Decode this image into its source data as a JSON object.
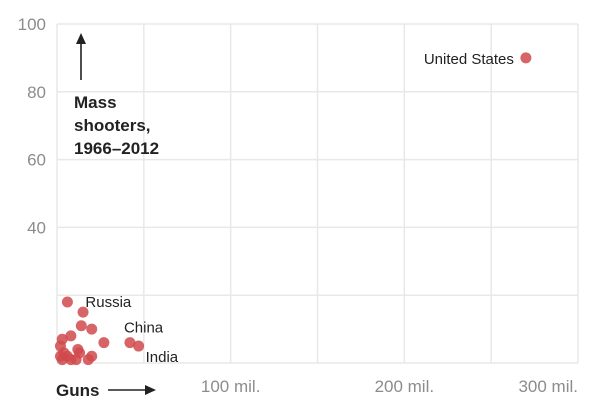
{
  "chart_data": {
    "type": "scatter",
    "xlabel": "Guns",
    "ylabel_lines": [
      "Mass",
      "shooters,",
      "1966–2012"
    ],
    "xlim": [
      0,
      300
    ],
    "ylim": [
      0,
      100
    ],
    "x_ticks": [
      {
        "value": 100,
        "label": "100 mil."
      },
      {
        "value": 200,
        "label": "200 mil."
      },
      {
        "value": 300,
        "label": "300 mil."
      }
    ],
    "y_ticks": [
      {
        "value": 100,
        "label": "100"
      },
      {
        "value": 80,
        "label": "80"
      },
      {
        "value": 60,
        "label": "60"
      },
      {
        "value": 40,
        "label": "40"
      }
    ],
    "x_gridlines": [
      50,
      100,
      150,
      200,
      250,
      300
    ],
    "y_gridlines": [
      20,
      40,
      60,
      80,
      100
    ],
    "grid": true,
    "point_color": "#d0494b",
    "points": [
      {
        "x": 270,
        "y": 90,
        "label": "United States"
      },
      {
        "x": 6,
        "y": 18,
        "label": "Russia"
      },
      {
        "x": 42,
        "y": 6,
        "label": "China"
      },
      {
        "x": 47,
        "y": 5,
        "label": "India"
      },
      {
        "x": 15,
        "y": 15
      },
      {
        "x": 14,
        "y": 11
      },
      {
        "x": 20,
        "y": 10
      },
      {
        "x": 8,
        "y": 8
      },
      {
        "x": 27,
        "y": 6
      },
      {
        "x": 3,
        "y": 7
      },
      {
        "x": 12,
        "y": 4
      },
      {
        "x": 20,
        "y": 2
      },
      {
        "x": 18,
        "y": 1
      },
      {
        "x": 11,
        "y": 1
      },
      {
        "x": 2,
        "y": 5
      },
      {
        "x": 4,
        "y": 3
      },
      {
        "x": 3,
        "y": 1
      },
      {
        "x": 6,
        "y": 2
      },
      {
        "x": 8,
        "y": 1
      },
      {
        "x": 2,
        "y": 2
      },
      {
        "x": 13,
        "y": 3
      }
    ]
  }
}
